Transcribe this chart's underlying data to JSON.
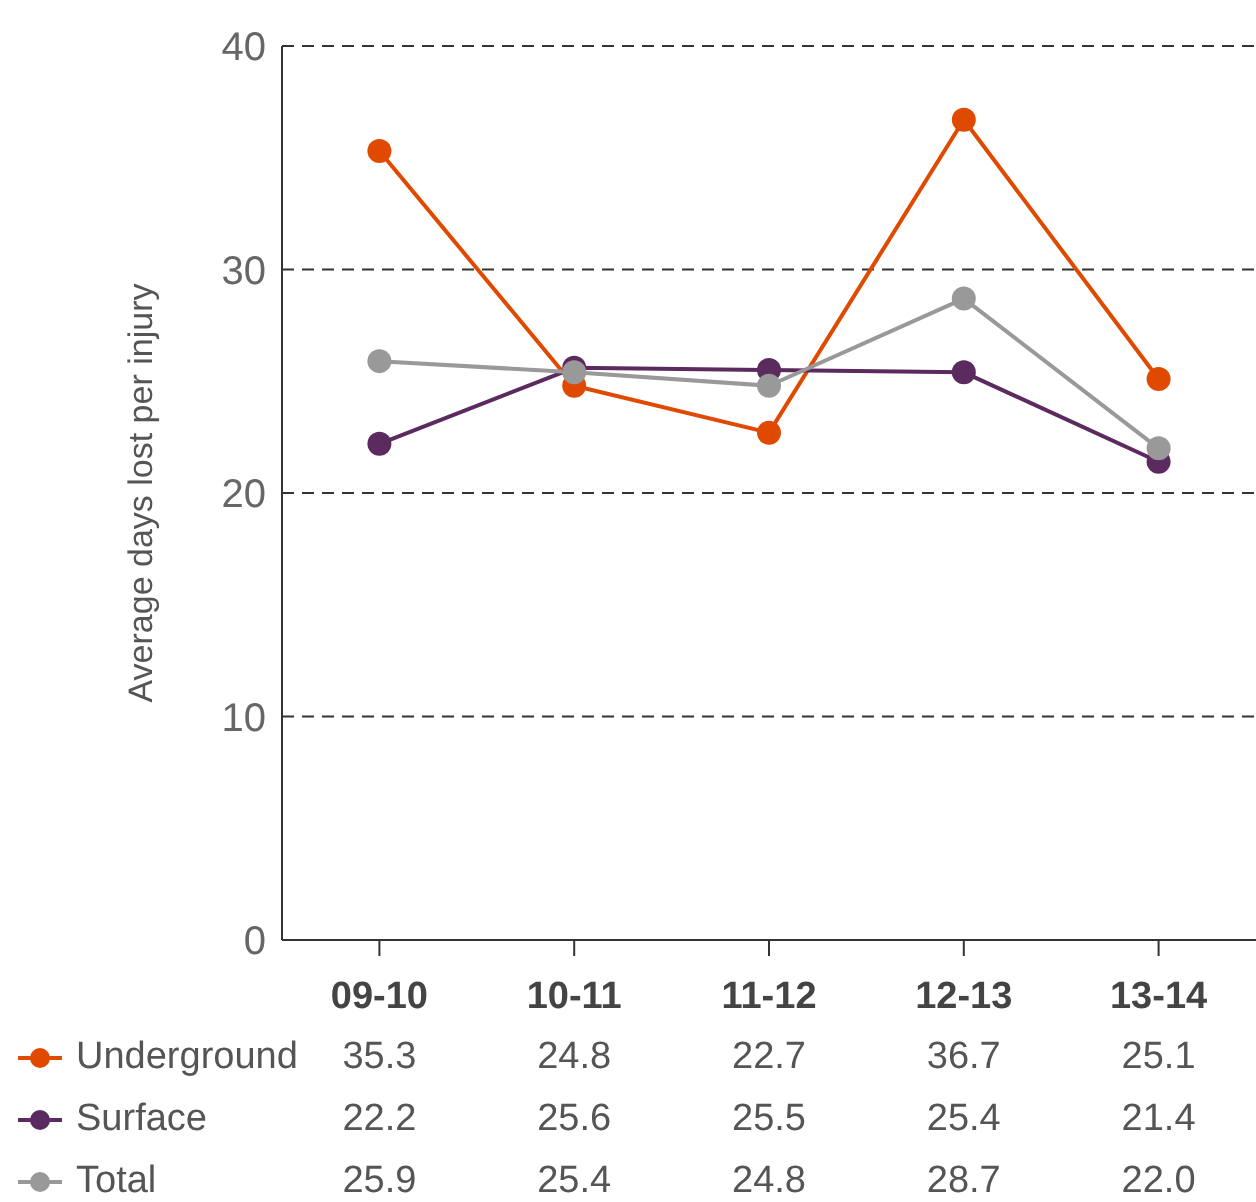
{
  "chart_data": {
    "type": "line",
    "ylabel": "Average days lost per injury",
    "categories": [
      "09-10",
      "10-11",
      "11-12",
      "12-13",
      "13-14"
    ],
    "series": [
      {
        "name": "Underground",
        "color": "#e04a00",
        "values": [
          35.3,
          24.8,
          22.7,
          36.7,
          25.1
        ],
        "value_labels": [
          "35.3",
          "24.8",
          "22.7",
          "36.7",
          "25.1"
        ]
      },
      {
        "name": "Surface",
        "color": "#5b2a5e",
        "values": [
          22.2,
          25.6,
          25.5,
          25.4,
          21.4
        ],
        "value_labels": [
          "22.2",
          "25.6",
          "25.5",
          "25.4",
          "21.4"
        ]
      },
      {
        "name": "Total",
        "color": "#999999",
        "values": [
          25.9,
          25.4,
          24.8,
          28.7,
          22.0
        ],
        "value_labels": [
          "25.9",
          "25.4",
          "24.8",
          "28.7",
          "22.0"
        ]
      }
    ],
    "ylim": [
      0,
      40
    ],
    "yticks": [
      0,
      10,
      20,
      30,
      40
    ],
    "grid": "y",
    "legend": "bottom",
    "marker": "circle",
    "line_style": "solid"
  }
}
